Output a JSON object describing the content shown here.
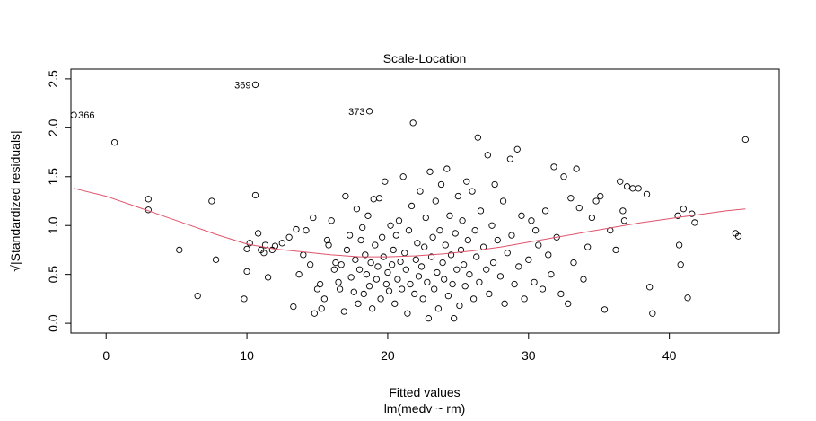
{
  "chart_data": {
    "type": "scatter",
    "title": "Scale-Location",
    "xlabel": "Fitted values",
    "xlabel_sub": "lm(medv ~ rm)",
    "ylabel": "√|Standardized residuals|",
    "xlim": [
      -2.5,
      47.8
    ],
    "ylim": [
      -0.1,
      2.6
    ],
    "xticks": [
      0,
      10,
      20,
      30,
      40
    ],
    "yticks": [
      0.0,
      0.5,
      1.0,
      1.5,
      2.0,
      2.5
    ],
    "xtick_labels": [
      "0",
      "10",
      "20",
      "30",
      "40"
    ],
    "ytick_labels": [
      "0.0",
      "0.5",
      "1.0",
      "1.5",
      "2.0",
      "2.5"
    ],
    "grid": false,
    "legend": "none",
    "point_color": "#000000",
    "smooth_color": "#DF536B",
    "labeled_points": [
      {
        "label": "369",
        "x": 10.6,
        "y": 2.44
      },
      {
        "label": "366",
        "x": -2.3,
        "y": 2.13
      },
      {
        "label": "373",
        "x": 18.7,
        "y": 2.17
      }
    ],
    "points": [
      [
        0.6,
        1.85
      ],
      [
        3.0,
        1.27
      ],
      [
        3.0,
        1.16
      ],
      [
        5.2,
        0.75
      ],
      [
        6.5,
        0.28
      ],
      [
        7.5,
        1.25
      ],
      [
        7.8,
        0.65
      ],
      [
        9.8,
        0.25
      ],
      [
        10.0,
        0.53
      ],
      [
        10.0,
        0.76
      ],
      [
        10.2,
        0.82
      ],
      [
        10.6,
        1.31
      ],
      [
        10.8,
        0.92
      ],
      [
        11.0,
        0.75
      ],
      [
        11.2,
        0.72
      ],
      [
        11.3,
        0.8
      ],
      [
        11.5,
        0.47
      ],
      [
        11.8,
        0.75
      ],
      [
        12.0,
        0.79
      ],
      [
        12.5,
        0.82
      ],
      [
        13.0,
        0.88
      ],
      [
        13.3,
        0.17
      ],
      [
        13.5,
        0.96
      ],
      [
        13.7,
        0.5
      ],
      [
        14.0,
        0.7
      ],
      [
        14.2,
        0.95
      ],
      [
        14.5,
        0.6
      ],
      [
        14.7,
        1.08
      ],
      [
        14.8,
        0.1
      ],
      [
        15.0,
        0.35
      ],
      [
        15.2,
        0.4
      ],
      [
        15.3,
        0.15
      ],
      [
        15.5,
        0.25
      ],
      [
        15.7,
        0.85
      ],
      [
        15.8,
        0.8
      ],
      [
        16.0,
        1.05
      ],
      [
        16.2,
        0.55
      ],
      [
        16.3,
        0.62
      ],
      [
        16.5,
        0.42
      ],
      [
        16.6,
        0.35
      ],
      [
        16.7,
        0.6
      ],
      [
        16.9,
        0.12
      ],
      [
        17.0,
        1.3
      ],
      [
        17.1,
        0.75
      ],
      [
        17.3,
        0.9
      ],
      [
        17.4,
        0.47
      ],
      [
        17.6,
        0.32
      ],
      [
        17.7,
        0.65
      ],
      [
        17.8,
        1.17
      ],
      [
        17.9,
        0.2
      ],
      [
        18.0,
        0.55
      ],
      [
        18.1,
        0.85
      ],
      [
        18.2,
        0.98
      ],
      [
        18.3,
        0.3
      ],
      [
        18.4,
        0.7
      ],
      [
        18.5,
        0.5
      ],
      [
        18.6,
        1.1
      ],
      [
        18.7,
        0.38
      ],
      [
        18.8,
        0.62
      ],
      [
        18.9,
        0.15
      ],
      [
        19.0,
        1.27
      ],
      [
        19.1,
        0.8
      ],
      [
        19.2,
        0.45
      ],
      [
        19.3,
        0.58
      ],
      [
        19.4,
        1.28
      ],
      [
        19.5,
        0.25
      ],
      [
        19.6,
        0.88
      ],
      [
        19.7,
        0.68
      ],
      [
        19.8,
        1.45
      ],
      [
        19.9,
        0.4
      ],
      [
        20.0,
        0.52
      ],
      [
        20.1,
        0.33
      ],
      [
        20.2,
        1.0
      ],
      [
        20.3,
        0.6
      ],
      [
        20.4,
        0.75
      ],
      [
        20.5,
        0.2
      ],
      [
        20.6,
        0.9
      ],
      [
        20.7,
        0.45
      ],
      [
        20.8,
        1.05
      ],
      [
        20.9,
        0.63
      ],
      [
        21.0,
        0.35
      ],
      [
        21.1,
        1.5
      ],
      [
        21.2,
        0.72
      ],
      [
        21.3,
        0.55
      ],
      [
        21.4,
        0.1
      ],
      [
        21.5,
        0.95
      ],
      [
        21.6,
        0.4
      ],
      [
        21.7,
        1.2
      ],
      [
        21.8,
        2.05
      ],
      [
        21.9,
        0.3
      ],
      [
        22.0,
        0.65
      ],
      [
        22.1,
        0.82
      ],
      [
        22.2,
        0.48
      ],
      [
        22.3,
        1.35
      ],
      [
        22.4,
        0.58
      ],
      [
        22.5,
        0.25
      ],
      [
        22.6,
        0.78
      ],
      [
        22.7,
        1.08
      ],
      [
        22.8,
        0.42
      ],
      [
        22.9,
        0.05
      ],
      [
        23.0,
        1.55
      ],
      [
        23.1,
        0.68
      ],
      [
        23.2,
        0.88
      ],
      [
        23.3,
        0.35
      ],
      [
        23.4,
        1.25
      ],
      [
        23.5,
        0.52
      ],
      [
        23.6,
        0.15
      ],
      [
        23.7,
        0.95
      ],
      [
        23.8,
        1.42
      ],
      [
        23.9,
        0.62
      ],
      [
        24.0,
        0.45
      ],
      [
        24.1,
        0.8
      ],
      [
        24.2,
        1.58
      ],
      [
        24.3,
        0.28
      ],
      [
        24.4,
        1.1
      ],
      [
        24.5,
        0.7
      ],
      [
        24.6,
        0.4
      ],
      [
        24.7,
        0.05
      ],
      [
        24.8,
        0.92
      ],
      [
        24.9,
        0.55
      ],
      [
        25.0,
        1.3
      ],
      [
        25.1,
        0.18
      ],
      [
        25.2,
        0.75
      ],
      [
        25.3,
        1.05
      ],
      [
        25.4,
        0.6
      ],
      [
        25.5,
        0.38
      ],
      [
        25.6,
        1.45
      ],
      [
        25.7,
        0.85
      ],
      [
        25.8,
        0.5
      ],
      [
        26.0,
        1.35
      ],
      [
        26.1,
        0.25
      ],
      [
        26.2,
        0.95
      ],
      [
        26.3,
        0.68
      ],
      [
        26.4,
        1.9
      ],
      [
        26.5,
        0.42
      ],
      [
        26.6,
        1.15
      ],
      [
        26.8,
        0.78
      ],
      [
        27.0,
        0.55
      ],
      [
        27.1,
        1.72
      ],
      [
        27.2,
        0.3
      ],
      [
        27.4,
        1.0
      ],
      [
        27.5,
        0.62
      ],
      [
        27.6,
        1.42
      ],
      [
        27.8,
        0.85
      ],
      [
        28.0,
        0.48
      ],
      [
        28.2,
        1.25
      ],
      [
        28.3,
        0.2
      ],
      [
        28.5,
        0.72
      ],
      [
        28.7,
        1.68
      ],
      [
        28.8,
        0.9
      ],
      [
        29.0,
        0.4
      ],
      [
        29.2,
        1.78
      ],
      [
        29.3,
        0.58
      ],
      [
        29.5,
        1.1
      ],
      [
        29.7,
        0.25
      ],
      [
        30.0,
        0.65
      ],
      [
        30.2,
        1.05
      ],
      [
        30.4,
        0.42
      ],
      [
        30.5,
        0.95
      ],
      [
        30.7,
        0.8
      ],
      [
        31.0,
        0.35
      ],
      [
        31.2,
        1.15
      ],
      [
        31.4,
        0.7
      ],
      [
        31.6,
        0.5
      ],
      [
        31.8,
        1.6
      ],
      [
        32.0,
        0.88
      ],
      [
        32.3,
        0.3
      ],
      [
        32.5,
        1.5
      ],
      [
        32.8,
        0.2
      ],
      [
        33.0,
        1.28
      ],
      [
        33.2,
        0.62
      ],
      [
        33.4,
        1.58
      ],
      [
        33.6,
        1.18
      ],
      [
        33.9,
        0.45
      ],
      [
        34.2,
        0.78
      ],
      [
        34.5,
        1.08
      ],
      [
        34.8,
        1.25
      ],
      [
        35.1,
        1.3
      ],
      [
        35.4,
        0.14
      ],
      [
        35.8,
        0.95
      ],
      [
        36.2,
        0.75
      ],
      [
        36.5,
        1.45
      ],
      [
        36.7,
        1.15
      ],
      [
        36.8,
        1.05
      ],
      [
        37.0,
        1.4
      ],
      [
        37.4,
        1.38
      ],
      [
        37.8,
        1.38
      ],
      [
        38.4,
        1.32
      ],
      [
        38.6,
        0.37
      ],
      [
        38.8,
        0.1
      ],
      [
        40.6,
        1.1
      ],
      [
        40.7,
        0.8
      ],
      [
        40.8,
        0.6
      ],
      [
        41.0,
        1.17
      ],
      [
        41.3,
        0.26
      ],
      [
        41.6,
        1.12
      ],
      [
        41.8,
        1.03
      ],
      [
        44.7,
        0.92
      ],
      [
        44.9,
        0.89
      ],
      [
        45.4,
        1.88
      ]
    ],
    "smooth": [
      [
        -2.3,
        1.38
      ],
      [
        0,
        1.3
      ],
      [
        2,
        1.2
      ],
      [
        4,
        1.1
      ],
      [
        6,
        1.0
      ],
      [
        8,
        0.9
      ],
      [
        10,
        0.81
      ],
      [
        12,
        0.76
      ],
      [
        14,
        0.73
      ],
      [
        16,
        0.7
      ],
      [
        18,
        0.68
      ],
      [
        20,
        0.68
      ],
      [
        22,
        0.69
      ],
      [
        24,
        0.71
      ],
      [
        26,
        0.74
      ],
      [
        28,
        0.78
      ],
      [
        30,
        0.83
      ],
      [
        32,
        0.88
      ],
      [
        34,
        0.93
      ],
      [
        36,
        0.98
      ],
      [
        38,
        1.03
      ],
      [
        40,
        1.07
      ],
      [
        42,
        1.11
      ],
      [
        44,
        1.15
      ],
      [
        45.4,
        1.17
      ]
    ]
  }
}
